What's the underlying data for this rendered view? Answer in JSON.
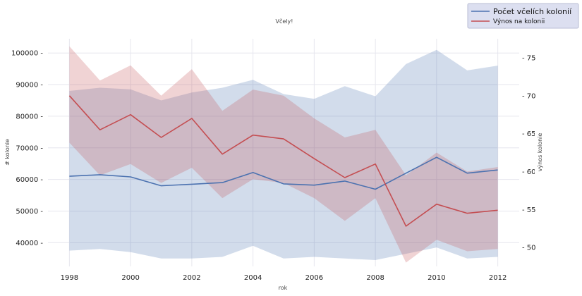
{
  "chart_data": {
    "type": "line",
    "title": "Včely!",
    "xlabel": "rok",
    "ylabel_left": "# kolonie",
    "ylabel_right": "výnos kolonie",
    "x": [
      1998,
      1999,
      2000,
      2001,
      2002,
      2003,
      2004,
      2005,
      2006,
      2007,
      2008,
      2009,
      2010,
      2011,
      2012
    ],
    "x_ticks": [
      "1998",
      "2000",
      "2002",
      "2004",
      "2006",
      "2008",
      "2010",
      "2012"
    ],
    "xlim": [
      1997.3,
      2012.7
    ],
    "ylim_left": [
      32500,
      104500
    ],
    "ylim_right": [
      47.5,
      77.5
    ],
    "y_ticks_left": [
      "40000",
      "50000",
      "60000",
      "70000",
      "80000",
      "90000",
      "100000"
    ],
    "y_ticks_right": [
      "50",
      "55",
      "60",
      "65",
      "70",
      "75"
    ],
    "grid": true,
    "legend_position": "top-right",
    "series": [
      {
        "name": "Počet včelích kolonií",
        "axis": "left",
        "color": "#4c72b0",
        "values": [
          61000,
          61500,
          60800,
          58000,
          58500,
          59000,
          62200,
          58600,
          58200,
          59500,
          56900,
          62000,
          67000,
          62000,
          63000
        ],
        "band_upper": [
          88000,
          89000,
          88500,
          85000,
          87500,
          89000,
          91500,
          87000,
          85500,
          89500,
          86300,
          96500,
          101000,
          94500,
          96000
        ],
        "band_lower": [
          37500,
          38000,
          37000,
          35000,
          35000,
          35500,
          39000,
          35000,
          35500,
          35000,
          34500,
          36500,
          38500,
          35000,
          35500
        ]
      },
      {
        "name": "Výnos na kolonii",
        "axis": "right",
        "color": "#c44e52",
        "values": [
          70.0,
          65.5,
          67.5,
          64.5,
          67.0,
          62.3,
          64.8,
          64.3,
          61.7,
          59.2,
          61.0,
          52.8,
          55.7,
          54.5,
          54.9
        ],
        "band_upper": [
          76.5,
          72.0,
          74.0,
          70.0,
          73.5,
          68.0,
          70.8,
          70.0,
          67.0,
          64.5,
          65.5,
          59.5,
          62.5,
          60.0,
          60.6
        ],
        "band_lower": [
          63.8,
          59.5,
          61.0,
          58.5,
          60.5,
          56.5,
          59.0,
          58.5,
          56.5,
          53.5,
          56.5,
          48.0,
          51.0,
          49.5,
          49.8
        ]
      }
    ]
  }
}
